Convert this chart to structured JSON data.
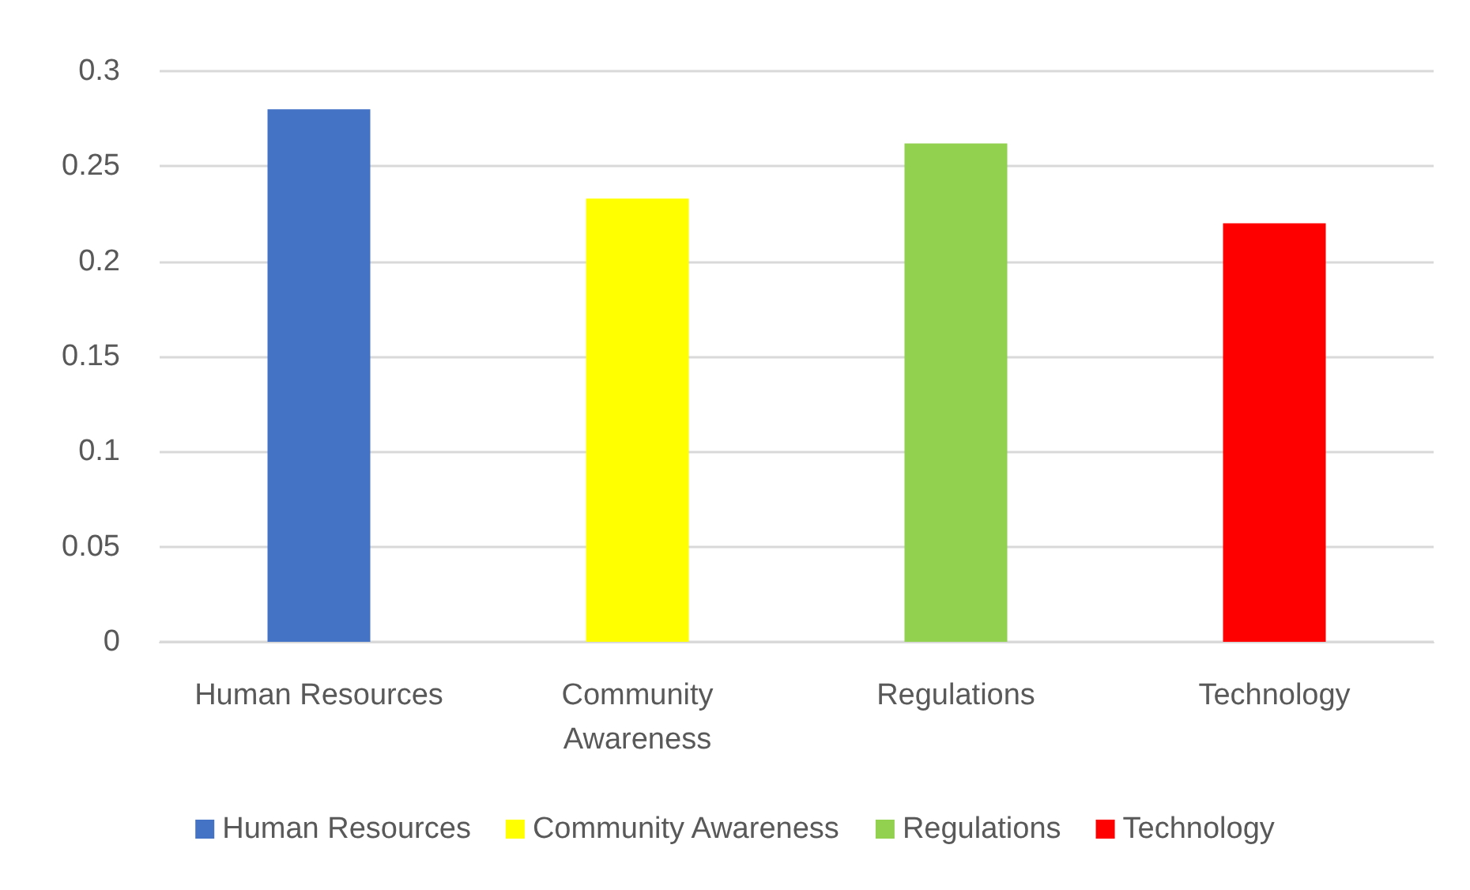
{
  "chart_data": {
    "type": "bar",
    "categories": [
      "Human Resources",
      "Community\nAwareness",
      "Regulations",
      "Technology"
    ],
    "series": [
      {
        "name": "Human Resources",
        "color": "#4472c4",
        "values": [
          0.28,
          null,
          null,
          null
        ]
      },
      {
        "name": "Community Awareness",
        "color": "#ffff00",
        "values": [
          null,
          0.233,
          null,
          null
        ]
      },
      {
        "name": "Regulations",
        "color": "#92d050",
        "values": [
          null,
          null,
          0.262,
          null
        ]
      },
      {
        "name": "Technology",
        "color": "#ff0000",
        "values": [
          null,
          null,
          null,
          0.22
        ]
      }
    ],
    "ylim": [
      0,
      0.3
    ],
    "yticks": [
      0,
      0.05,
      0.1,
      0.15,
      0.2,
      0.25,
      0.3
    ],
    "grid": "y",
    "legend": "bottom"
  }
}
